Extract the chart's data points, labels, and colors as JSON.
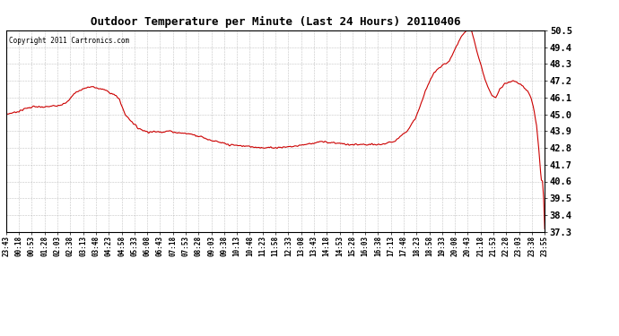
{
  "title": "Outdoor Temperature per Minute (Last 24 Hours) 20110406",
  "copyright_text": "Copyright 2011 Cartronics.com",
  "line_color": "#cc0000",
  "background_color": "#ffffff",
  "plot_background": "#ffffff",
  "grid_color": "#aaaaaa",
  "y_ticks": [
    37.3,
    38.4,
    39.5,
    40.6,
    41.7,
    42.8,
    43.9,
    45.0,
    46.1,
    47.2,
    48.3,
    49.4,
    50.5
  ],
  "ylim": [
    37.3,
    50.5
  ],
  "x_tick_labels": [
    "23:43",
    "00:18",
    "00:53",
    "01:28",
    "02:03",
    "02:38",
    "03:13",
    "03:48",
    "04:23",
    "04:58",
    "05:33",
    "06:08",
    "06:43",
    "07:18",
    "07:53",
    "08:28",
    "09:03",
    "09:38",
    "10:13",
    "10:48",
    "11:23",
    "11:58",
    "12:33",
    "13:08",
    "13:43",
    "14:18",
    "14:53",
    "15:28",
    "16:03",
    "16:38",
    "17:13",
    "17:48",
    "18:23",
    "18:58",
    "19:33",
    "20:08",
    "20:43",
    "21:18",
    "21:53",
    "22:28",
    "23:03",
    "23:38",
    "23:55"
  ],
  "n_points": 1453,
  "key_points_x": [
    0,
    35,
    55,
    75,
    95,
    115,
    140,
    160,
    175,
    185,
    210,
    230,
    265,
    290,
    305,
    320,
    355,
    380,
    415,
    440,
    460,
    480,
    500,
    515,
    530,
    545,
    560,
    575,
    600,
    625,
    650,
    675,
    700,
    725,
    750,
    775,
    800,
    825,
    850,
    875,
    900,
    920,
    940,
    960,
    980,
    1000,
    1015,
    1030,
    1050,
    1060,
    1075,
    1090,
    1100,
    1110,
    1120,
    1130,
    1145,
    1155,
    1165,
    1175,
    1185,
    1195,
    1205,
    1215,
    1225,
    1235,
    1245,
    1255,
    1265,
    1280,
    1295,
    1310,
    1320,
    1330,
    1345,
    1355,
    1365,
    1375,
    1385,
    1395,
    1405,
    1415,
    1420,
    1425,
    1430,
    1435,
    1440,
    1443,
    1446,
    1449,
    1452
  ],
  "key_points_y": [
    45.0,
    45.2,
    45.4,
    45.5,
    45.45,
    45.5,
    45.6,
    45.7,
    46.1,
    46.4,
    46.7,
    46.8,
    46.6,
    46.3,
    46.0,
    45.0,
    44.1,
    43.85,
    43.85,
    43.9,
    43.8,
    43.75,
    43.7,
    43.6,
    43.5,
    43.35,
    43.25,
    43.15,
    43.0,
    42.95,
    42.9,
    42.85,
    42.8,
    42.82,
    42.85,
    42.9,
    43.0,
    43.1,
    43.2,
    43.15,
    43.1,
    43.0,
    43.0,
    43.0,
    43.0,
    43.0,
    43.05,
    43.1,
    43.3,
    43.5,
    43.8,
    44.2,
    44.6,
    45.1,
    45.8,
    46.5,
    47.3,
    47.8,
    48.0,
    48.2,
    48.3,
    48.5,
    49.0,
    49.5,
    50.0,
    50.3,
    50.5,
    50.45,
    49.5,
    48.2,
    47.0,
    46.2,
    46.1,
    46.6,
    47.0,
    47.1,
    47.2,
    47.15,
    47.0,
    46.8,
    46.5,
    46.1,
    45.6,
    45.0,
    44.2,
    43.0,
    41.5,
    40.7,
    40.6,
    39.5,
    37.5
  ]
}
